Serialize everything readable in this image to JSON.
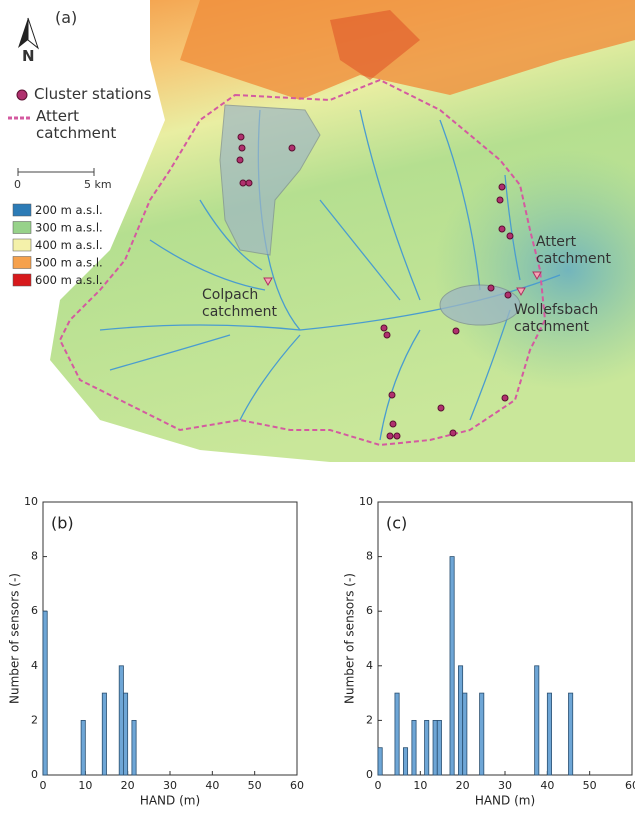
{
  "map": {
    "panel_label": "(a)",
    "north": "N",
    "legend": [
      "Cluster stations",
      "Attert catchment"
    ],
    "scale": [
      "0",
      "5 km"
    ],
    "elevation": [
      {
        "label": "200 m a.s.l.",
        "color": "#2c7bb6"
      },
      {
        "label": "300 m a.s.l.",
        "color": "#97d28a"
      },
      {
        "label": "400 m a.s.l.",
        "color": "#f4f1aa"
      },
      {
        "label": "500 m a.s.l.",
        "color": "#f6a14c"
      },
      {
        "label": "600 m a.s.l.",
        "color": "#d7191c"
      }
    ],
    "catchments": [
      "Colpach catchment",
      "Attert catchment",
      "Wollefsbach catchment"
    ]
  },
  "chart_data": [
    {
      "type": "histogram",
      "panel_label": "(b)",
      "x_label": "HAND (m)",
      "y_label": "Number of sensors (-)",
      "color": "#6ea6d6",
      "bins": [
        0,
        1,
        2,
        3,
        4,
        5,
        6,
        7,
        8,
        9,
        10,
        11,
        12,
        13,
        14,
        15,
        16,
        17,
        18,
        19,
        20,
        21,
        22,
        23,
        24,
        25,
        26,
        27,
        28,
        29,
        30,
        31,
        32,
        33,
        34,
        35,
        36,
        37,
        38,
        39,
        40,
        41,
        42,
        43,
        44,
        45,
        46,
        47,
        48,
        49,
        50,
        51,
        52,
        53,
        54,
        55,
        56,
        57,
        58,
        59,
        60
      ],
      "counts": [
        6,
        0,
        0,
        0,
        0,
        0,
        0,
        0,
        0,
        2,
        0,
        0,
        0,
        0,
        3,
        0,
        0,
        0,
        4,
        3,
        0,
        2,
        0,
        0,
        0,
        0,
        0,
        0,
        0,
        0,
        0,
        0,
        0,
        0,
        0,
        0,
        0,
        0,
        0,
        0,
        0,
        0,
        0,
        0,
        0,
        0,
        0,
        0,
        0,
        0,
        0,
        0,
        0,
        0,
        0,
        0,
        0,
        0,
        0,
        0
      ],
      "xlim": [
        0,
        60
      ],
      "xticks": [
        0,
        10,
        20,
        30,
        40,
        50,
        60
      ],
      "ylim": [
        0,
        10
      ],
      "yticks": [
        0,
        2,
        4,
        6,
        8,
        10
      ]
    },
    {
      "type": "histogram",
      "panel_label": "(c)",
      "x_label": "HAND (m)",
      "y_label": "Number of sensors (-)",
      "color": "#6ea6d6",
      "bins": [
        0,
        1,
        2,
        3,
        4,
        5,
        6,
        7,
        8,
        9,
        10,
        11,
        12,
        13,
        14,
        15,
        16,
        17,
        18,
        19,
        20,
        21,
        22,
        23,
        24,
        25,
        26,
        27,
        28,
        29,
        30,
        31,
        32,
        33,
        34,
        35,
        36,
        37,
        38,
        39,
        40,
        41,
        42,
        43,
        44,
        45,
        46,
        47,
        48,
        49,
        50,
        51,
        52,
        53,
        54,
        55,
        56,
        57,
        58,
        59,
        60
      ],
      "counts": [
        1,
        0,
        0,
        0,
        3,
        0,
        1,
        0,
        2,
        0,
        0,
        2,
        0,
        2,
        2,
        0,
        0,
        8,
        0,
        4,
        3,
        0,
        0,
        0,
        3,
        0,
        0,
        0,
        0,
        0,
        0,
        0,
        0,
        0,
        0,
        0,
        0,
        4,
        0,
        0,
        3,
        0,
        0,
        0,
        0,
        3,
        0,
        0,
        0,
        0,
        0,
        0,
        0,
        0,
        0,
        0,
        0,
        0,
        0,
        0
      ],
      "xlim": [
        0,
        60
      ],
      "xticks": [
        0,
        10,
        20,
        30,
        40,
        50,
        60
      ],
      "ylim": [
        0,
        10
      ],
      "yticks": [
        0,
        2,
        4,
        6,
        8,
        10
      ]
    }
  ]
}
